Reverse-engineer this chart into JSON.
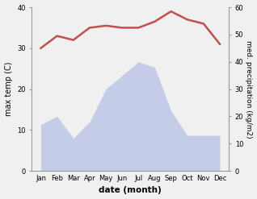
{
  "months": [
    "Jan",
    "Feb",
    "Mar",
    "Apr",
    "May",
    "Jun",
    "Jul",
    "Aug",
    "Sep",
    "Oct",
    "Nov",
    "Dec"
  ],
  "temperature": [
    30,
    33,
    32,
    35,
    35.5,
    35,
    35,
    36.5,
    39,
    37,
    36,
    31
  ],
  "precipitation": [
    17,
    20,
    12,
    18,
    30,
    35,
    40,
    38,
    22,
    13,
    13,
    13
  ],
  "temp_color": "#c0504d",
  "precip_fill_color": "#c5cce8",
  "ylabel_left": "max temp (C)",
  "ylabel_right": "med. precipitation (kg/m2)",
  "xlabel": "date (month)",
  "ylim_left": [
    0,
    40
  ],
  "ylim_right": [
    0,
    60
  ],
  "yticks_left": [
    0,
    10,
    20,
    30,
    40
  ],
  "yticks_right": [
    0,
    10,
    20,
    30,
    40,
    50,
    60
  ],
  "bg_color": "#f0f0f0",
  "line_width": 1.8
}
